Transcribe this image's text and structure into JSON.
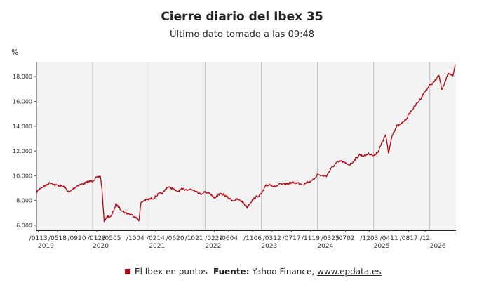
{
  "chart_data": {
    "type": "line",
    "title": "Cierre diario del Ibex 35",
    "subtitle": "Último dato tomado a las 09:48",
    "ylabel": "%",
    "ylim": [
      5600,
      19200
    ],
    "yticks": [
      6000,
      8000,
      10000,
      12000,
      14000,
      16000,
      18000
    ],
    "ytick_labels": [
      "6.000",
      "8.000",
      "10.000",
      "12.000",
      "14.000",
      "16.000",
      "18.000"
    ],
    "xlim": [
      "2019-01-01",
      "2026-06-20"
    ],
    "x_ticks": [
      {
        "x": "2019-01-13",
        "label": "/0113"
      },
      {
        "x": "2019-05-18",
        "label": "/0518"
      },
      {
        "x": "2019-09-20",
        "label": "/0920"
      },
      {
        "x": "2020-01-28",
        "label": "/0128"
      },
      {
        "x": "2020-05-05",
        "label": "/0505"
      },
      {
        "x": "2020-10-04",
        "label": "/1004"
      },
      {
        "x": "2021-02-14",
        "label": "/0214"
      },
      {
        "x": "2021-06-20",
        "label": "/0620"
      },
      {
        "x": "2021-10-21",
        "label": "/1021"
      },
      {
        "x": "2022-02-29",
        "label": "/0229"
      },
      {
        "x": "2022-06-04",
        "label": "/0604"
      },
      {
        "x": "2022-11-06",
        "label": "/1106"
      },
      {
        "x": "2023-03-12",
        "label": "/0312"
      },
      {
        "x": "2023-07-17",
        "label": "/0717"
      },
      {
        "x": "2023-11-19",
        "label": "/1119"
      },
      {
        "x": "2024-03-25",
        "label": "/0325"
      },
      {
        "x": "2024-07-02",
        "label": "/0702"
      },
      {
        "x": "2024-12-03",
        "label": "/1203"
      },
      {
        "x": "2025-04-11",
        "label": "/0411"
      },
      {
        "x": "2025-08-17",
        "label": "/0817"
      },
      {
        "x": "2025-12-01",
        "label": "/12"
      }
    ],
    "year_ticks": [
      {
        "x": "2019-01-01",
        "label": "2019"
      },
      {
        "x": "2020-01-01",
        "label": "2020"
      },
      {
        "x": "2021-01-01",
        "label": "2021"
      },
      {
        "x": "2022-01-01",
        "label": "2022"
      },
      {
        "x": "2023-01-01",
        "label": "2023"
      },
      {
        "x": "2024-01-01",
        "label": "2024"
      },
      {
        "x": "2025-01-01",
        "label": "2025"
      },
      {
        "x": "2026-01-01",
        "label": "2026"
      }
    ],
    "grid": true,
    "series": [
      {
        "name": "El Ibex en puntos",
        "color": "#b5050f",
        "points": [
          [
            "2019-01-01",
            8700
          ],
          [
            "2019-02-01",
            9050
          ],
          [
            "2019-03-01",
            9200
          ],
          [
            "2019-04-01",
            9450
          ],
          [
            "2019-05-01",
            9250
          ],
          [
            "2019-06-01",
            9200
          ],
          [
            "2019-07-01",
            9100
          ],
          [
            "2019-08-01",
            8650
          ],
          [
            "2019-09-01",
            9000
          ],
          [
            "2019-10-01",
            9250
          ],
          [
            "2019-11-01",
            9350
          ],
          [
            "2019-12-01",
            9500
          ],
          [
            "2020-01-01",
            9600
          ],
          [
            "2020-01-20",
            9800
          ],
          [
            "2020-02-10",
            9900
          ],
          [
            "2020-02-20",
            10000
          ],
          [
            "2020-03-01",
            9000
          ],
          [
            "2020-03-16",
            6300
          ],
          [
            "2020-04-01",
            6700
          ],
          [
            "2020-05-01",
            6700
          ],
          [
            "2020-06-01",
            7700
          ],
          [
            "2020-07-01",
            7300
          ],
          [
            "2020-08-01",
            7000
          ],
          [
            "2020-09-01",
            6900
          ],
          [
            "2020-10-01",
            6700
          ],
          [
            "2020-10-28",
            6400
          ],
          [
            "2020-11-10",
            7800
          ],
          [
            "2020-12-01",
            8000
          ],
          [
            "2021-01-01",
            8100
          ],
          [
            "2021-02-01",
            8200
          ],
          [
            "2021-03-01",
            8500
          ],
          [
            "2021-04-01",
            8600
          ],
          [
            "2021-05-01",
            9100
          ],
          [
            "2021-06-01",
            9000
          ],
          [
            "2021-07-01",
            8700
          ],
          [
            "2021-08-01",
            8900
          ],
          [
            "2021-09-01",
            8900
          ],
          [
            "2021-10-01",
            8900
          ],
          [
            "2021-11-01",
            8800
          ],
          [
            "2021-12-01",
            8500
          ],
          [
            "2022-01-01",
            8700
          ],
          [
            "2022-02-01",
            8600
          ],
          [
            "2022-03-01",
            8200
          ],
          [
            "2022-04-01",
            8500
          ],
          [
            "2022-05-01",
            8500
          ],
          [
            "2022-06-01",
            8200
          ],
          [
            "2022-07-01",
            8000
          ],
          [
            "2022-08-01",
            8100
          ],
          [
            "2022-09-01",
            7900
          ],
          [
            "2022-10-01",
            7450
          ],
          [
            "2022-11-01",
            8000
          ],
          [
            "2022-12-01",
            8300
          ],
          [
            "2023-01-01",
            8500
          ],
          [
            "2023-02-01",
            9200
          ],
          [
            "2023-03-01",
            9300
          ],
          [
            "2023-04-01",
            9100
          ],
          [
            "2023-05-01",
            9300
          ],
          [
            "2023-06-01",
            9300
          ],
          [
            "2023-07-01",
            9400
          ],
          [
            "2023-08-01",
            9450
          ],
          [
            "2023-09-01",
            9400
          ],
          [
            "2023-10-01",
            9300
          ],
          [
            "2023-11-01",
            9500
          ],
          [
            "2023-12-01",
            9600
          ],
          [
            "2024-01-01",
            10100
          ],
          [
            "2024-02-01",
            10000
          ],
          [
            "2024-03-01",
            10000
          ],
          [
            "2024-04-01",
            10600
          ],
          [
            "2024-05-01",
            11000
          ],
          [
            "2024-06-01",
            11200
          ],
          [
            "2024-07-01",
            11000
          ],
          [
            "2024-08-01",
            10900
          ],
          [
            "2024-09-01",
            11300
          ],
          [
            "2024-10-01",
            11700
          ],
          [
            "2024-11-01",
            11600
          ],
          [
            "2024-12-01",
            11800
          ],
          [
            "2025-01-01",
            11600
          ],
          [
            "2025-02-01",
            12000
          ],
          [
            "2025-03-01",
            12800
          ],
          [
            "2025-03-20",
            13300
          ],
          [
            "2025-04-08",
            11800
          ],
          [
            "2025-05-01",
            13300
          ],
          [
            "2025-06-01",
            14000
          ],
          [
            "2025-07-01",
            14200
          ],
          [
            "2025-08-01",
            14600
          ],
          [
            "2025-09-01",
            15200
          ],
          [
            "2025-10-01",
            15700
          ],
          [
            "2025-11-01",
            16200
          ],
          [
            "2025-12-01",
            16800
          ],
          [
            "2026-01-01",
            17300
          ],
          [
            "2026-02-01",
            17600
          ],
          [
            "2026-03-01",
            18100
          ],
          [
            "2026-03-20",
            17000
          ],
          [
            "2026-04-01",
            17300
          ],
          [
            "2026-05-01",
            18200
          ],
          [
            "2026-06-01",
            18100
          ],
          [
            "2026-06-15",
            19000
          ]
        ]
      }
    ]
  },
  "legend": {
    "label": "El Ibex en puntos",
    "color": "#b5050f"
  },
  "source": {
    "label": "Fuente:",
    "text": "Yahoo Finance,",
    "link": "www.epdata.es"
  }
}
